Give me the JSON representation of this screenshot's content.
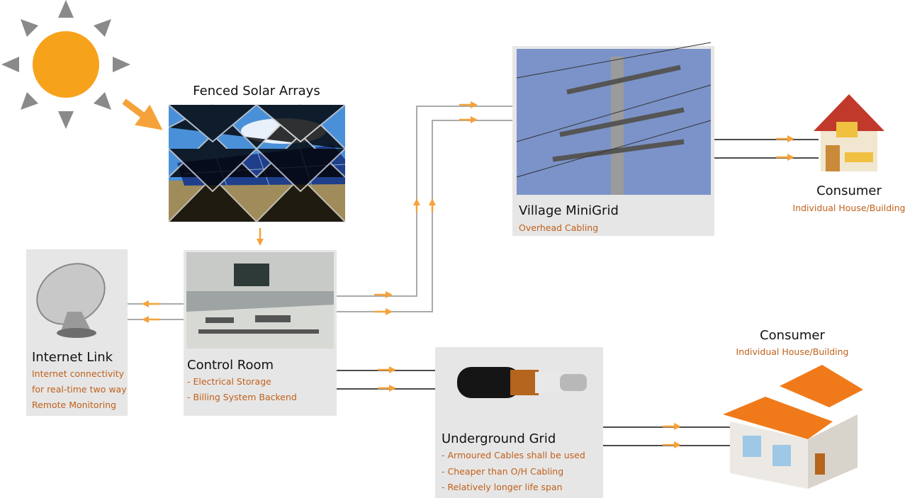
{
  "nodes": [
    {
      "title": "Fenced Solar Arrays",
      "lines": []
    },
    {
      "title": "Control Room",
      "lines": [
        "- Electrical Storage",
        "- Billing System Backend"
      ]
    },
    {
      "title": "Internet Link",
      "lines": [
        "Internet connectivity",
        "for real-time two way",
        "Remote Monitoring"
      ]
    },
    {
      "title": "Village MiniGrid",
      "lines": [
        "Overhead Cabling"
      ]
    },
    {
      "title": "Consumer",
      "lines": [
        "Individual House/Building"
      ]
    },
    {
      "title": "Underground Grid",
      "lines": [
        "- Armoured Cables shall be used",
        "- Cheaper than O/H Cabling",
        "- Relatively longer life span"
      ]
    },
    {
      "title": "Consumer",
      "lines": [
        "Individual House/Building"
      ]
    }
  ]
}
